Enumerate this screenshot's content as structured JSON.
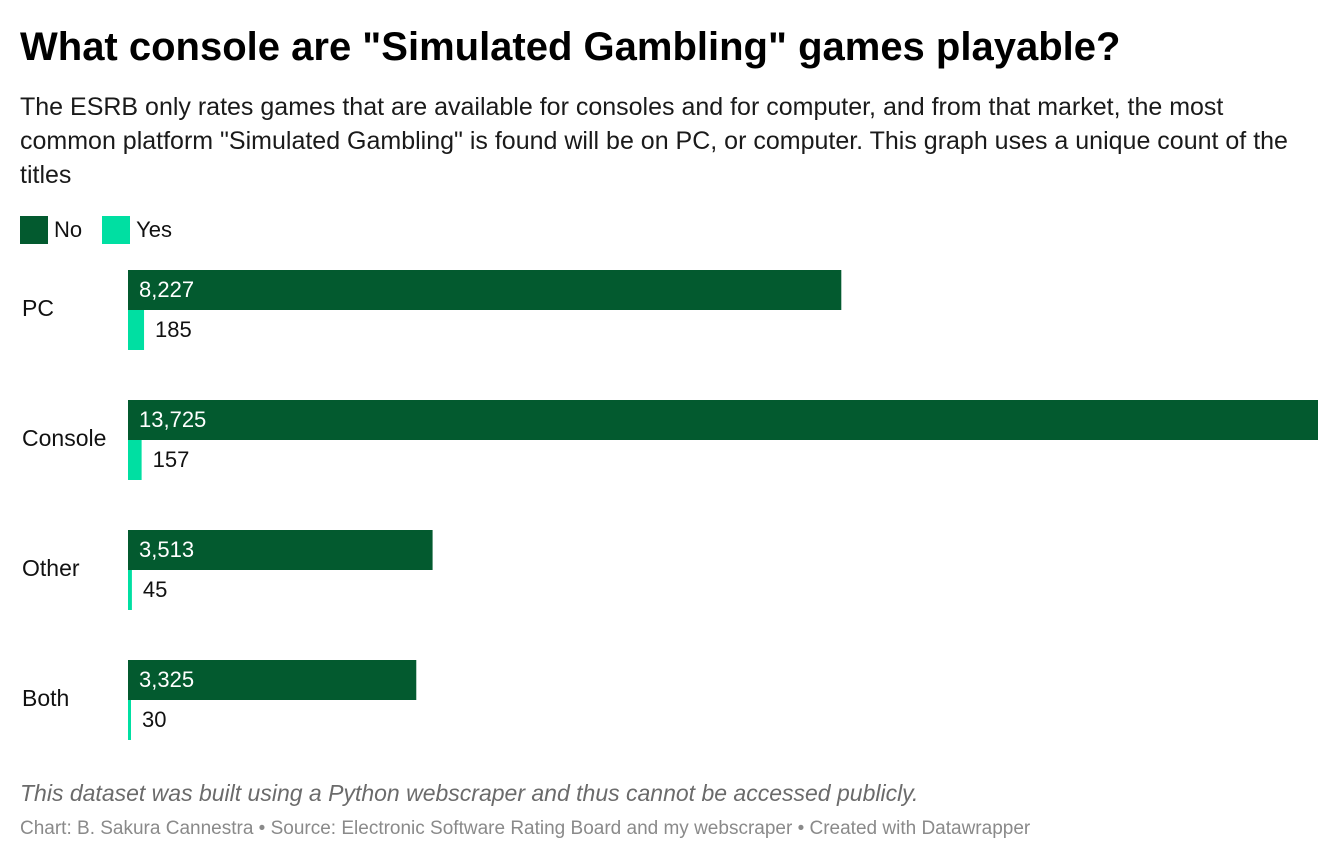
{
  "title": "What console are \"Simulated Gambling\" games playable?",
  "subtitle": "The ESRB only rates games that are available for consoles and for computer, and from that market, the most common platform \"Simulated Gambling\" is found will be on PC, or computer. This graph uses a unique count of the titles",
  "note": "This dataset was built using a Python webscraper and thus cannot be accessed publicly.",
  "credits": "Chart: B. Sakura Cannestra • Source: Electronic Software Rating Board and my webscraper • Created with Datawrapper",
  "colors": {
    "no": "#035a2f",
    "yes": "#00dfa2"
  },
  "chart_data": {
    "type": "bar",
    "orientation": "horizontal",
    "categories": [
      "PC",
      "Console",
      "Other",
      "Both"
    ],
    "series": [
      {
        "name": "No",
        "values": [
          8227,
          13725,
          3513,
          3325
        ],
        "labels": [
          "8,227",
          "13,725",
          "3,513",
          "3,325"
        ]
      },
      {
        "name": "Yes",
        "values": [
          185,
          157,
          45,
          30
        ],
        "labels": [
          "185",
          "157",
          "45",
          "30"
        ]
      }
    ],
    "legend_position": "top-left",
    "grid": false
  }
}
